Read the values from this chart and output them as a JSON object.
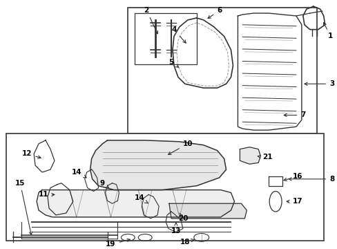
{
  "bg_color": "#ffffff",
  "line_color": "#333333",
  "label_color": "#000000"
}
